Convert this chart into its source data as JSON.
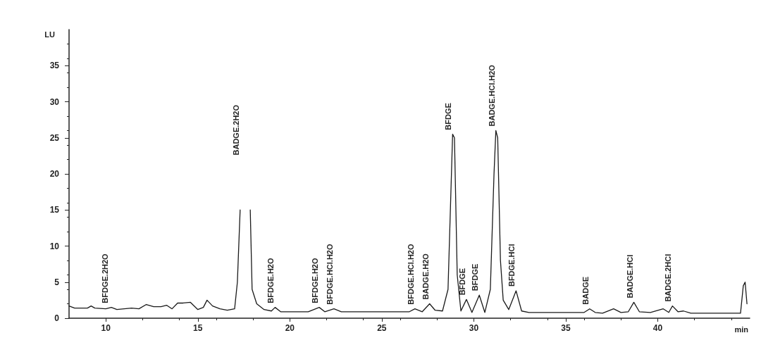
{
  "chart_data": {
    "type": "line",
    "xlabel": "min",
    "ylabel": "LU",
    "color": "#1a1a1a",
    "marker": "none",
    "line_style": "solid",
    "grid": false,
    "xlim": [
      8,
      45
    ],
    "xticks": [
      10,
      15,
      20,
      25,
      30,
      35,
      40
    ],
    "ylim": [
      0,
      40
    ],
    "yticks": [
      0,
      5,
      10,
      15,
      20,
      25,
      30,
      35
    ],
    "x": [
      8.0,
      8.3,
      9.0,
      9.2,
      9.4,
      10.0,
      10.3,
      10.6,
      11.0,
      11.4,
      11.8,
      12.2,
      12.6,
      13.0,
      13.3,
      13.6,
      13.9,
      14.2,
      14.6,
      15.0,
      15.3,
      15.5,
      15.8,
      16.2,
      16.6,
      17.0,
      17.15,
      17.3,
      17.4,
      17.75,
      17.85,
      17.95,
      18.2,
      18.6,
      19.0,
      19.2,
      19.5,
      20.0,
      21.0,
      21.6,
      21.9,
      22.4,
      22.8,
      24.0,
      25.0,
      26.5,
      26.8,
      27.2,
      27.6,
      27.9,
      28.3,
      28.6,
      28.85,
      28.95,
      29.1,
      29.3,
      29.6,
      29.9,
      30.3,
      30.6,
      30.9,
      31.1,
      31.2,
      31.3,
      31.45,
      31.6,
      31.9,
      32.3,
      32.6,
      33.0,
      35.0,
      36.0,
      36.3,
      36.6,
      37.0,
      37.6,
      38.0,
      38.4,
      38.7,
      39.0,
      39.6,
      40.3,
      40.6,
      40.8,
      41.1,
      41.4,
      41.8,
      44.5,
      44.65,
      44.75,
      44.85
    ],
    "values": [
      1.7,
      1.4,
      1.4,
      1.7,
      1.4,
      1.3,
      1.5,
      1.2,
      1.3,
      1.4,
      1.3,
      1.9,
      1.6,
      1.6,
      1.8,
      1.3,
      2.1,
      2.1,
      2.2,
      1.2,
      1.5,
      2.5,
      1.7,
      1.3,
      1.1,
      1.3,
      5,
      15,
      null,
      null,
      15,
      4,
      2.0,
      1.2,
      1.0,
      1.5,
      0.9,
      0.9,
      0.9,
      1.5,
      0.9,
      1.3,
      0.9,
      0.9,
      0.9,
      0.9,
      1.3,
      0.9,
      2.0,
      1.1,
      1.0,
      4,
      25.5,
      25,
      6,
      1.0,
      2.6,
      0.8,
      3.2,
      0.8,
      4,
      20,
      26,
      25,
      8,
      2.5,
      1.2,
      3.8,
      1.0,
      0.8,
      0.8,
      0.8,
      1.3,
      0.8,
      0.7,
      1.3,
      0.8,
      0.9,
      2.2,
      0.9,
      0.8,
      1.3,
      0.8,
      1.7,
      0.9,
      1.0,
      0.7,
      0.7,
      4.5,
      5.0,
      2
    ],
    "annotations": [
      {
        "text": "BFDGE.2H2O",
        "x": 10.2,
        "y": 1.5
      },
      "BADGE.2H2O",
      {
        "text": "BFDGE.H2O",
        "x": 19.2,
        "y": 1.5
      },
      {
        "text": "BFDGE.H2O",
        "x": 21.6,
        "y": 1.5
      },
      {
        "text": "BFDGE.HCl.H2O",
        "x": 22.4,
        "y": 1.3
      },
      {
        "text": "BFDGE.HCl.H2O",
        "x": 26.8,
        "y": 1.3
      },
      {
        "text": "BADGE.H2O",
        "x": 27.6,
        "y": 2.0
      },
      {
        "text": "BFDGE",
        "x": 28.85,
        "y": 25.5
      },
      {
        "text": "BFDGE",
        "x": 29.6,
        "y": 2.6
      },
      {
        "text": "BFDGE",
        "x": 30.3,
        "y": 3.2
      },
      {
        "text": "BADGE.HCl.H2O",
        "x": 31.2,
        "y": 26
      },
      {
        "text": "BFDGE.HCl",
        "x": 32.3,
        "y": 3.8
      },
      {
        "text": "BADGE",
        "x": 36.3,
        "y": 1.3
      },
      {
        "text": "BADGE.HCl",
        "x": 38.7,
        "y": 2.2
      },
      {
        "text": "BADGE.2HCl",
        "x": 40.8,
        "y": 1.7
      }
    ]
  }
}
